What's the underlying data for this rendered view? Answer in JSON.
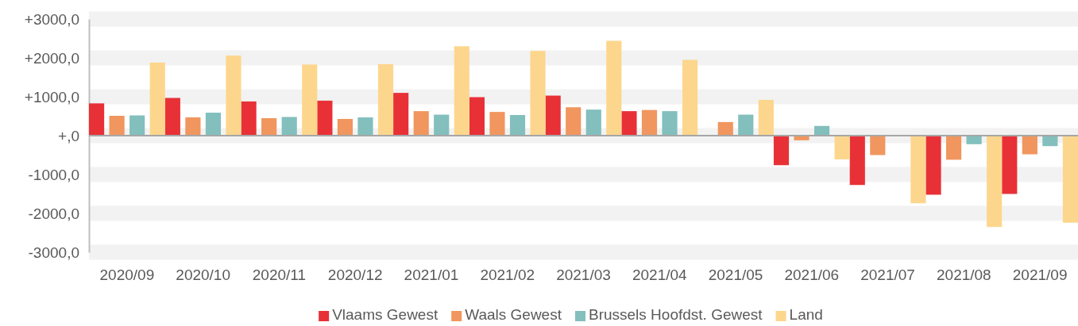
{
  "chart_data": {
    "type": "bar",
    "categories": [
      "2020/09",
      "2020/10",
      "2020/11",
      "2020/12",
      "2021/01",
      "2021/02",
      "2021/03",
      "2021/04",
      "2021/05",
      "2021/06",
      "2021/07",
      "2021/08",
      "2021/09"
    ],
    "series": [
      {
        "name": "Vlaams Gewest",
        "color": "#e83137",
        "values": [
          830,
          970,
          880,
          900,
          1100,
          990,
          1030,
          630,
          0,
          -760,
          -1270,
          -1520,
          -1500
        ]
      },
      {
        "name": "Waals Gewest",
        "color": "#f0965e",
        "values": [
          510,
          470,
          450,
          430,
          630,
          610,
          730,
          660,
          350,
          -120,
          -500,
          -620,
          -480
        ]
      },
      {
        "name": "Brussels Hoofdst. Gewest",
        "color": "#82bfbd",
        "values": [
          520,
          590,
          480,
          470,
          540,
          530,
          670,
          630,
          540,
          250,
          20,
          -220,
          -270
        ]
      },
      {
        "name": "Land",
        "color": "#fdd68d",
        "values": [
          1880,
          2060,
          1830,
          1840,
          2300,
          2180,
          2440,
          1950,
          920,
          -610,
          -1740,
          -2350,
          -2240
        ]
      }
    ],
    "ylim": [
      -3000,
      3000
    ],
    "yticks": [
      {
        "value": -3000,
        "label": "-3000,0"
      },
      {
        "value": -2000,
        "label": "-2000,0"
      },
      {
        "value": -1000,
        "label": "-1000,0"
      },
      {
        "value": 0,
        "label": "+,0"
      },
      {
        "value": 1000,
        "label": "+1000,0"
      },
      {
        "value": 2000,
        "label": "+2000,0"
      },
      {
        "value": 3000,
        "label": "+3000,0"
      }
    ],
    "grid": "y",
    "legend": "bottom"
  }
}
